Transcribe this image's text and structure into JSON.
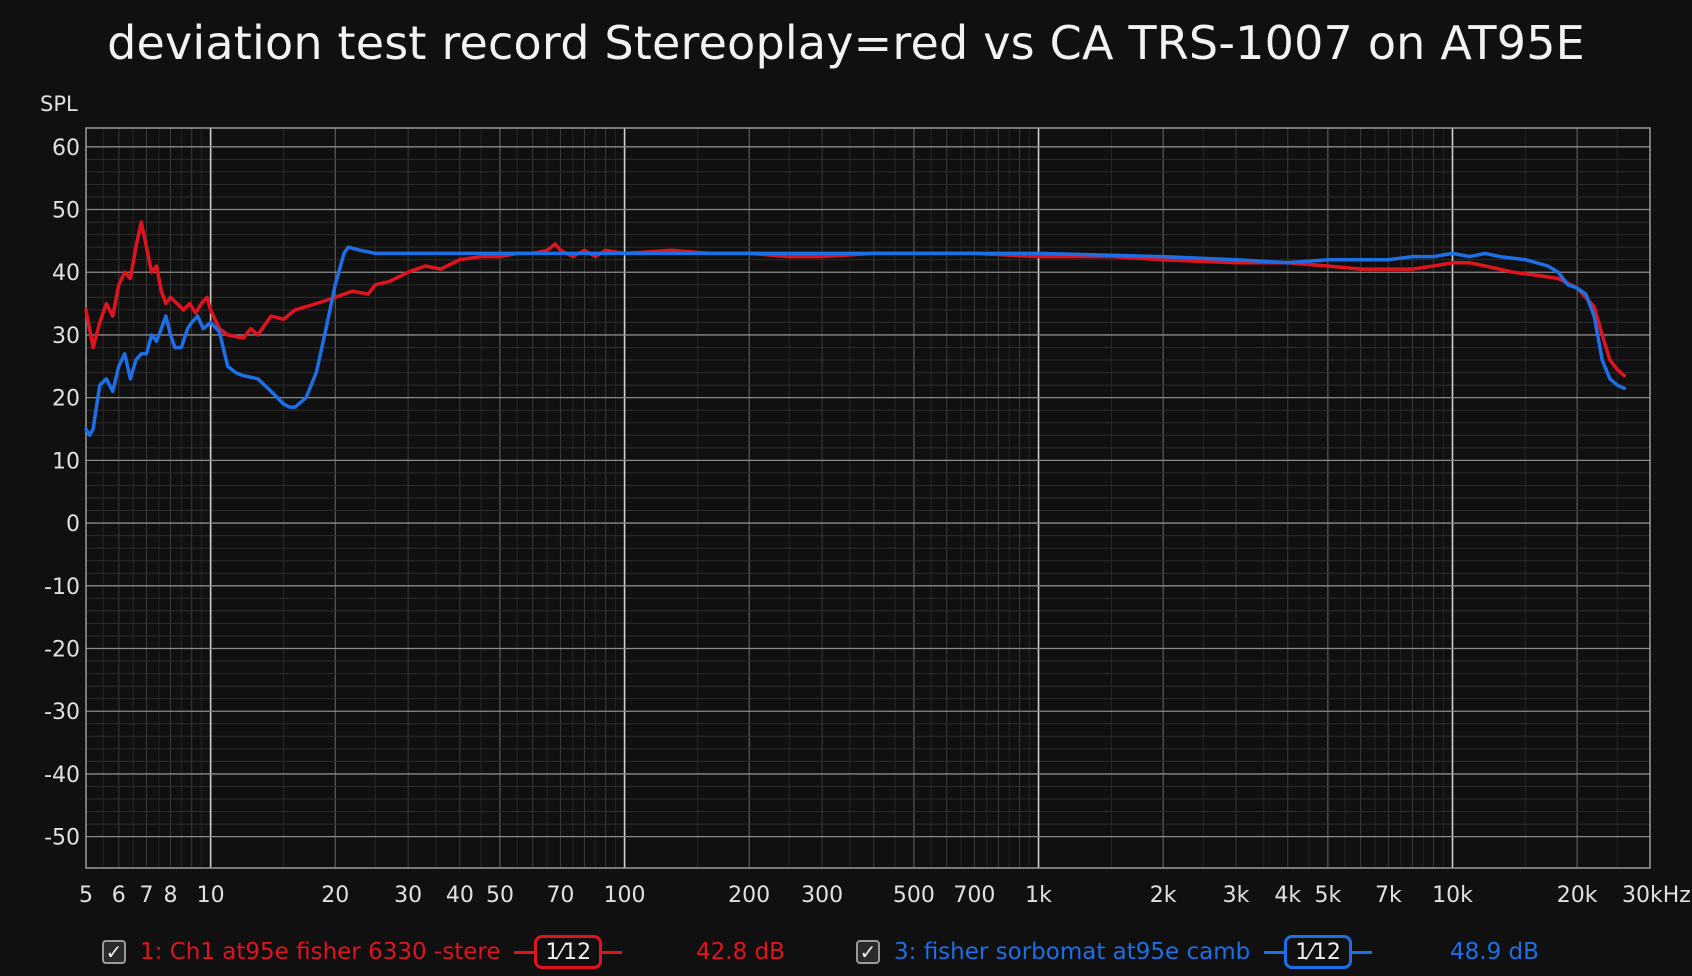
{
  "chart_data": {
    "type": "line",
    "title": "deviation test record Stereoplay=red vs CA TRS-1007 on AT95E",
    "ylabel": "SPL",
    "xscale": "log",
    "xlim": [
      5,
      30000
    ],
    "ylim": [
      -55,
      63
    ],
    "grid": true,
    "y_ticks": [
      60,
      50,
      40,
      30,
      20,
      10,
      0,
      -10,
      -20,
      -30,
      -40,
      -50
    ],
    "x_ticks": [
      {
        "v": 5,
        "label": "5"
      },
      {
        "v": 6,
        "label": "6"
      },
      {
        "v": 7,
        "label": "7"
      },
      {
        "v": 8,
        "label": "8"
      },
      {
        "v": 10,
        "label": "10"
      },
      {
        "v": 20,
        "label": "20"
      },
      {
        "v": 30,
        "label": "30"
      },
      {
        "v": 40,
        "label": "40"
      },
      {
        "v": 50,
        "label": "50"
      },
      {
        "v": 70,
        "label": "70"
      },
      {
        "v": 100,
        "label": "100"
      },
      {
        "v": 200,
        "label": "200"
      },
      {
        "v": 300,
        "label": "300"
      },
      {
        "v": 500,
        "label": "500"
      },
      {
        "v": 700,
        "label": "700"
      },
      {
        "v": 1000,
        "label": "1k"
      },
      {
        "v": 2000,
        "label": "2k"
      },
      {
        "v": 3000,
        "label": "3k"
      },
      {
        "v": 4000,
        "label": "4k"
      },
      {
        "v": 5000,
        "label": "5k"
      },
      {
        "v": 7000,
        "label": "7k"
      },
      {
        "v": 10000,
        "label": "10k"
      },
      {
        "v": 20000,
        "label": "20k"
      },
      {
        "v": 30000,
        "label": "30kHz"
      }
    ],
    "series": [
      {
        "name": "1: Ch1 at95e fisher 6330 -stere",
        "color": "#e0141e",
        "points": [
          [
            5,
            34
          ],
          [
            5.2,
            28
          ],
          [
            5.4,
            32
          ],
          [
            5.6,
            35
          ],
          [
            5.8,
            33
          ],
          [
            6.0,
            38
          ],
          [
            6.2,
            40
          ],
          [
            6.4,
            39
          ],
          [
            6.6,
            44
          ],
          [
            6.8,
            48
          ],
          [
            7.0,
            44
          ],
          [
            7.2,
            40
          ],
          [
            7.4,
            41
          ],
          [
            7.6,
            37
          ],
          [
            7.8,
            35
          ],
          [
            8.0,
            36
          ],
          [
            8.3,
            35
          ],
          [
            8.6,
            34
          ],
          [
            8.9,
            35
          ],
          [
            9.2,
            33.5
          ],
          [
            9.5,
            35
          ],
          [
            9.8,
            36
          ],
          [
            10,
            34
          ],
          [
            10.5,
            31
          ],
          [
            11,
            30
          ],
          [
            12,
            29.5
          ],
          [
            12.5,
            31
          ],
          [
            13,
            30
          ],
          [
            14,
            33
          ],
          [
            15,
            32.5
          ],
          [
            16,
            34
          ],
          [
            17,
            34.5
          ],
          [
            18,
            35
          ],
          [
            19,
            35.5
          ],
          [
            20,
            36
          ],
          [
            22,
            37
          ],
          [
            24,
            36.5
          ],
          [
            25,
            38
          ],
          [
            27,
            38.5
          ],
          [
            30,
            40
          ],
          [
            33,
            41
          ],
          [
            36,
            40.5
          ],
          [
            40,
            42
          ],
          [
            45,
            42.5
          ],
          [
            50,
            42.5
          ],
          [
            55,
            43
          ],
          [
            60,
            43
          ],
          [
            65,
            43.5
          ],
          [
            68,
            44.5
          ],
          [
            70,
            43.5
          ],
          [
            75,
            42.5
          ],
          [
            80,
            43.5
          ],
          [
            85,
            42.5
          ],
          [
            90,
            43.5
          ],
          [
            100,
            43
          ],
          [
            130,
            43.5
          ],
          [
            160,
            43
          ],
          [
            200,
            43
          ],
          [
            250,
            42.5
          ],
          [
            300,
            42.5
          ],
          [
            400,
            43
          ],
          [
            500,
            43
          ],
          [
            700,
            43
          ],
          [
            1000,
            42.5
          ],
          [
            1500,
            42.5
          ],
          [
            2000,
            42
          ],
          [
            3000,
            41.5
          ],
          [
            4000,
            41.5
          ],
          [
            5000,
            41
          ],
          [
            6000,
            40.5
          ],
          [
            7000,
            40.5
          ],
          [
            8000,
            40.5
          ],
          [
            9000,
            41
          ],
          [
            10000,
            41.5
          ],
          [
            11000,
            41.5
          ],
          [
            12000,
            41
          ],
          [
            14000,
            40
          ],
          [
            16000,
            39.5
          ],
          [
            18000,
            39
          ],
          [
            20000,
            37.5
          ],
          [
            22000,
            34.5
          ],
          [
            23000,
            30
          ],
          [
            24000,
            26
          ],
          [
            25000,
            24.5
          ],
          [
            26000,
            23.5
          ]
        ]
      },
      {
        "name": "3: fisher sorbomat at95e camb",
        "color": "#1e6fe6",
        "points": [
          [
            5,
            15
          ],
          [
            5.1,
            14
          ],
          [
            5.2,
            15
          ],
          [
            5.4,
            22
          ],
          [
            5.6,
            23
          ],
          [
            5.8,
            21
          ],
          [
            6.0,
            25
          ],
          [
            6.2,
            27
          ],
          [
            6.4,
            23
          ],
          [
            6.6,
            26
          ],
          [
            6.8,
            27
          ],
          [
            7.0,
            27
          ],
          [
            7.2,
            30
          ],
          [
            7.4,
            29
          ],
          [
            7.6,
            31
          ],
          [
            7.8,
            33
          ],
          [
            8.0,
            30
          ],
          [
            8.2,
            28
          ],
          [
            8.5,
            28
          ],
          [
            8.8,
            31
          ],
          [
            9.0,
            32
          ],
          [
            9.3,
            33
          ],
          [
            9.6,
            31
          ],
          [
            10,
            32
          ],
          [
            10.5,
            30.5
          ],
          [
            11,
            25
          ],
          [
            11.5,
            24
          ],
          [
            12,
            23.5
          ],
          [
            13,
            23
          ],
          [
            13.5,
            22
          ],
          [
            14,
            21
          ],
          [
            15,
            19
          ],
          [
            15.5,
            18.5
          ],
          [
            16,
            18.5
          ],
          [
            17,
            20
          ],
          [
            18,
            24
          ],
          [
            19,
            31
          ],
          [
            20,
            38
          ],
          [
            21,
            43
          ],
          [
            21.5,
            44
          ],
          [
            23,
            43.5
          ],
          [
            25,
            43
          ],
          [
            30,
            43
          ],
          [
            40,
            43
          ],
          [
            60,
            43
          ],
          [
            80,
            43
          ],
          [
            100,
            43
          ],
          [
            150,
            43
          ],
          [
            200,
            43
          ],
          [
            300,
            43
          ],
          [
            500,
            43
          ],
          [
            1000,
            43
          ],
          [
            2000,
            42.5
          ],
          [
            3000,
            42
          ],
          [
            4000,
            41.5
          ],
          [
            5000,
            42
          ],
          [
            6000,
            42
          ],
          [
            7000,
            42
          ],
          [
            8000,
            42.5
          ],
          [
            9000,
            42.5
          ],
          [
            10000,
            43
          ],
          [
            11000,
            42.5
          ],
          [
            12000,
            43
          ],
          [
            13000,
            42.5
          ],
          [
            15000,
            42
          ],
          [
            17000,
            41
          ],
          [
            18000,
            40
          ],
          [
            19000,
            38
          ],
          [
            20000,
            37.5
          ],
          [
            21000,
            36.5
          ],
          [
            22000,
            33
          ],
          [
            23000,
            26
          ],
          [
            24000,
            23
          ],
          [
            25000,
            22
          ],
          [
            26000,
            21.5
          ]
        ]
      }
    ]
  },
  "legend": [
    {
      "name": "1: Ch1 at95e fisher 6330 -stere",
      "smoothing": "1⁄12",
      "value": "42.8 dB",
      "color": "#e0141e",
      "checked": "✓"
    },
    {
      "name": "3: fisher sorbomat at95e camb",
      "smoothing": "1⁄12",
      "value": "48.9 dB",
      "color": "#1e6fe6",
      "checked": "✓"
    }
  ]
}
